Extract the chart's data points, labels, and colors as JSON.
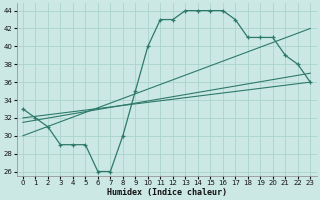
{
  "xlabel": "Humidex (Indice chaleur)",
  "bg_color": "#cce8e4",
  "grid_color": "#aad4cc",
  "line_color": "#2d7a6a",
  "xlim": [
    -0.5,
    23.5
  ],
  "ylim": [
    25.5,
    44.8
  ],
  "xticks": [
    0,
    1,
    2,
    3,
    4,
    5,
    6,
    7,
    8,
    9,
    10,
    11,
    12,
    13,
    14,
    15,
    16,
    17,
    18,
    19,
    20,
    21,
    22,
    23
  ],
  "yticks": [
    26,
    28,
    30,
    32,
    34,
    36,
    38,
    40,
    42,
    44
  ],
  "curve1_x": [
    0,
    1,
    2,
    3,
    4,
    5,
    6,
    7,
    8,
    9,
    10,
    11,
    12,
    13,
    14,
    15,
    16,
    17,
    18,
    19,
    20,
    21,
    22,
    23
  ],
  "curve1_y": [
    33,
    32,
    31,
    29,
    29,
    29,
    26,
    26,
    30,
    35,
    40,
    43,
    43,
    44,
    44,
    44,
    44,
    43,
    41,
    41,
    41,
    39,
    38,
    36
  ],
  "line1_x": [
    0,
    23
  ],
  "line1_y": [
    32,
    36
  ],
  "line2_x": [
    0,
    23
  ],
  "line2_y": [
    30,
    42
  ],
  "line3_x": [
    0,
    23
  ],
  "line3_y": [
    31.5,
    37
  ]
}
